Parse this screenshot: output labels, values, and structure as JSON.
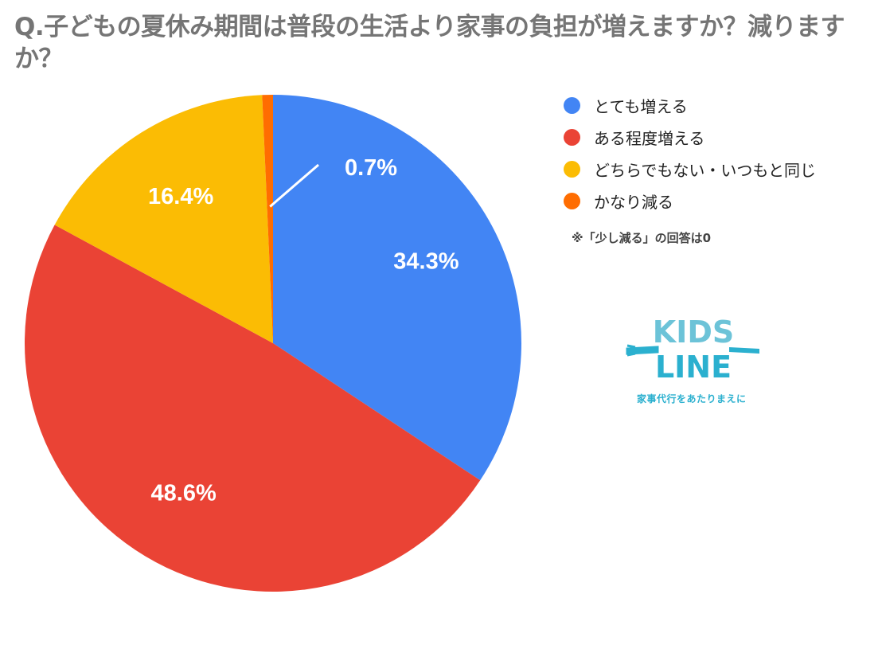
{
  "title": "Q.子どもの夏休み期間は普段の生活より家事の負担が増えますか？減りますか？",
  "legend": [
    {
      "label": "とても増える",
      "color": "#4285f4"
    },
    {
      "label": "ある程度増える",
      "color": "#ea4335"
    },
    {
      "label": "どちらでもない・いつもと同じ",
      "color": "#fbbc04"
    },
    {
      "label": "かなり減る",
      "color": "#ff6d01"
    }
  ],
  "note": "※「少し減る」の回答は0",
  "logo": {
    "line1": "KIDS",
    "line2": "LINE",
    "tagline": "家事代行をあたりまえに"
  },
  "chart_data": {
    "type": "pie",
    "title": "Q.子どもの夏休み期間は普段の生活より家事の負担が増えますか？減りますか？",
    "categories": [
      "とても増える",
      "ある程度増える",
      "どちらでもない・いつもと同じ",
      "かなり減る"
    ],
    "values": [
      34.3,
      48.6,
      16.4,
      0.7
    ],
    "labels": [
      "34.3%",
      "48.6%",
      "16.4%",
      "0.7%"
    ],
    "colors": [
      "#4285f4",
      "#ea4335",
      "#fbbc04",
      "#ff6d01"
    ],
    "start_angle": "12 o'clock, clockwise",
    "legend_position": "right",
    "annotations": [
      "※「少し減る」の回答は0"
    ]
  }
}
